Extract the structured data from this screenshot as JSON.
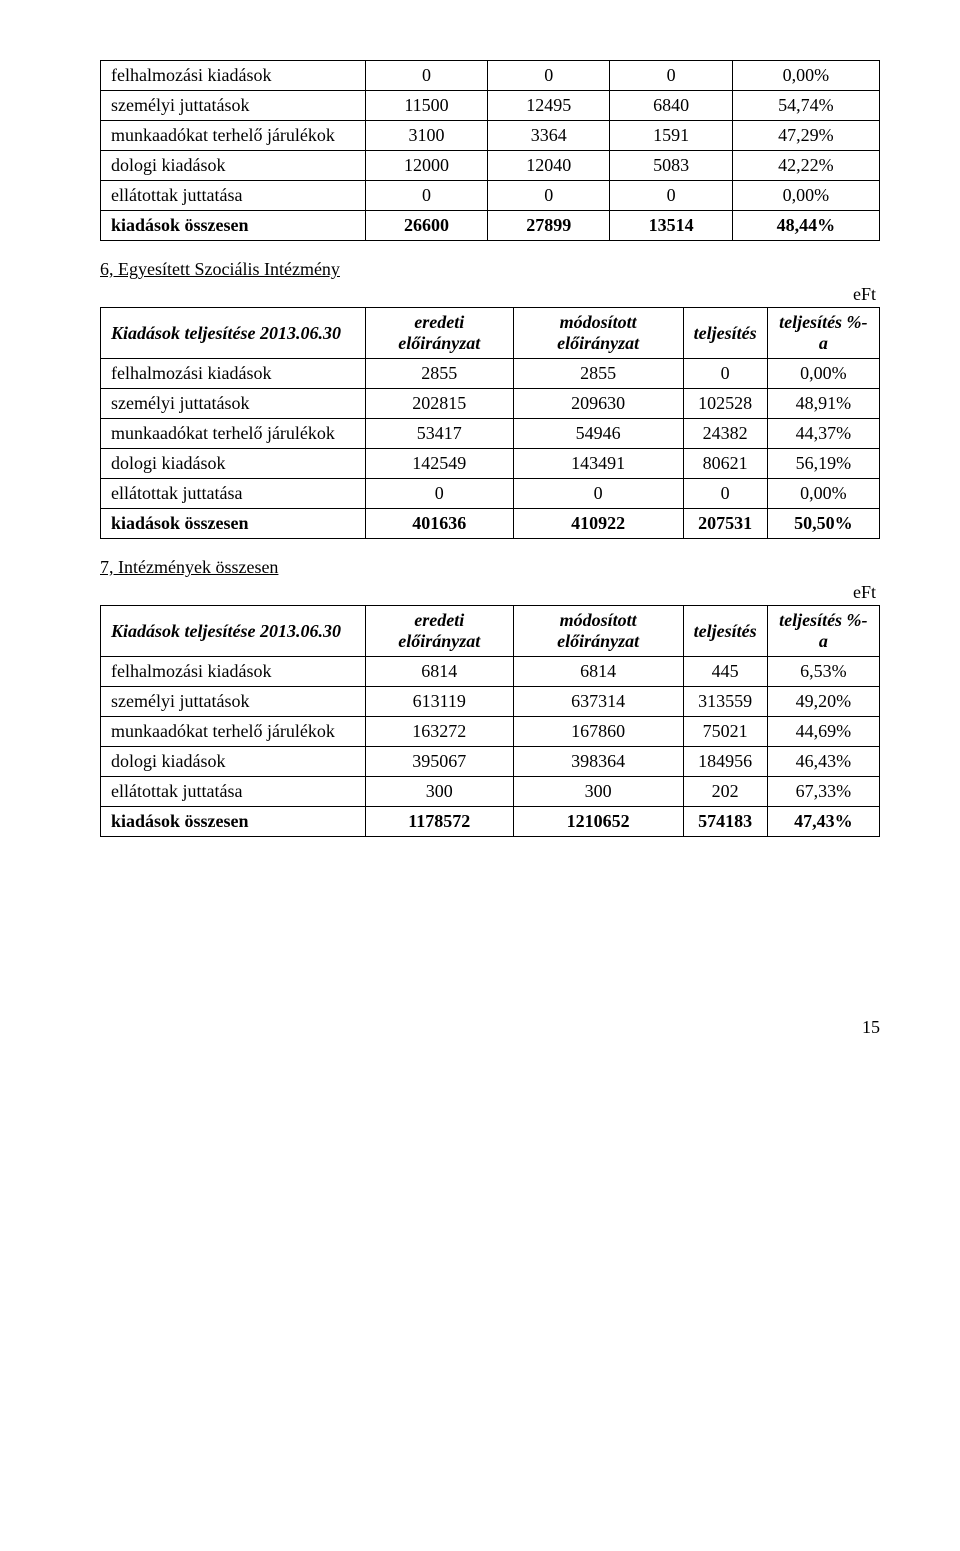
{
  "unit_label": "eFt",
  "header": {
    "row_label": "Kiadások teljesítése 2013.06.30",
    "cols": [
      "eredeti előirányzat",
      "módosított előirányzat",
      "teljesítés",
      "teljesítés %-a"
    ]
  },
  "row_labels": {
    "felhalmozasi": "felhalmozási kiadások",
    "szemelyi": "személyi juttatások",
    "munkaadokat": "munkaadókat terhelő járulékok",
    "dologi": "dologi kiadások",
    "ellatottak": "ellátottak juttatása",
    "osszesen": "kiadások összesen"
  },
  "table0_rows": {
    "felhalmozasi": [
      "0",
      "0",
      "0",
      "0,00%"
    ],
    "szemelyi": [
      "11500",
      "12495",
      "6840",
      "54,74%"
    ],
    "munkaadokat": [
      "3100",
      "3364",
      "1591",
      "47,29%"
    ],
    "dologi": [
      "12000",
      "12040",
      "5083",
      "42,22%"
    ],
    "ellatottak": [
      "0",
      "0",
      "0",
      "0,00%"
    ],
    "osszesen": [
      "26600",
      "27899",
      "13514",
      "48,44%"
    ]
  },
  "section6_title": "6, Egyesített Szociális Intézmény",
  "table6_rows": {
    "felhalmozasi": [
      "2855",
      "2855",
      "0",
      "0,00%"
    ],
    "szemelyi": [
      "202815",
      "209630",
      "102528",
      "48,91%"
    ],
    "munkaadokat": [
      "53417",
      "54946",
      "24382",
      "44,37%"
    ],
    "dologi": [
      "142549",
      "143491",
      "80621",
      "56,19%"
    ],
    "ellatottak": [
      "0",
      "0",
      "0",
      "0,00%"
    ],
    "osszesen": [
      "401636",
      "410922",
      "207531",
      "50,50%"
    ]
  },
  "section7_title": "7, Intézmények összesen",
  "table7_rows": {
    "felhalmozasi": [
      "6814",
      "6814",
      "445",
      "6,53%"
    ],
    "szemelyi": [
      "613119",
      "637314",
      "313559",
      "49,20%"
    ],
    "munkaadokat": [
      "163272",
      "167860",
      "75021",
      "44,69%"
    ],
    "dologi": [
      "395067",
      "398364",
      "184956",
      "46,43%"
    ],
    "ellatottak": [
      "300",
      "300",
      "202",
      "67,33%"
    ],
    "osszesen": [
      "1178572",
      "1210652",
      "574183",
      "47,43%"
    ]
  },
  "page_number": "15"
}
